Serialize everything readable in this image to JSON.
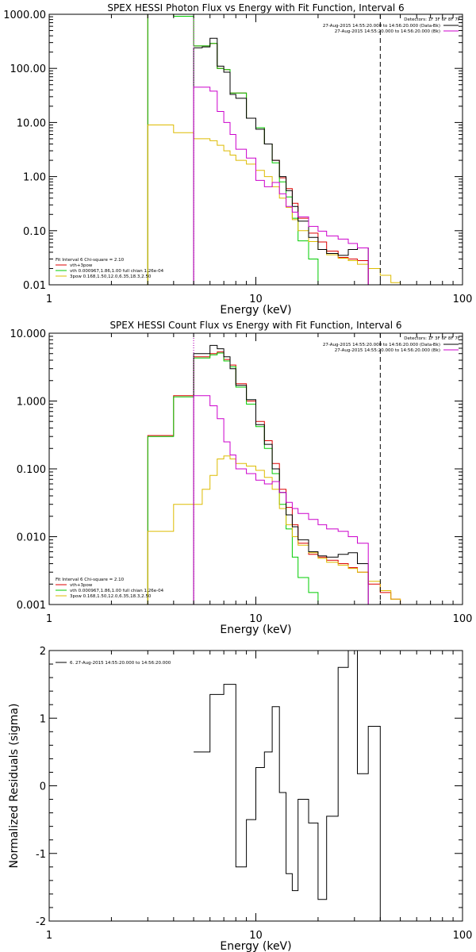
{
  "chart_data": [
    {
      "type": "line",
      "title": "SPEX HESSI Photon Flux vs Energy with Fit Function, Interval 6",
      "xlabel": "Energy (keV)",
      "ylabel": "",
      "xscale": "log",
      "yscale": "log",
      "xlim": [
        1,
        100
      ],
      "ylim": [
        0.01,
        1000
      ],
      "x_ticks": [
        1,
        10,
        100
      ],
      "x_tick_labels": [
        "1",
        "10",
        "100"
      ],
      "y_ticks": [
        0.01,
        0.1,
        1,
        10,
        100,
        1000
      ],
      "y_tick_labels": [
        "0.01",
        "0.10",
        "1.00",
        "10.00",
        "100.00",
        "1000.00"
      ],
      "vlines": [
        {
          "x": 5,
          "style": "dotted",
          "color": "#000000"
        },
        {
          "x": 5,
          "style": "dotted",
          "color": "#cc00cc"
        },
        {
          "x": 40,
          "style": "dashed",
          "color": "#000000"
        }
      ],
      "legend_top": {
        "placement": "top-right",
        "header": "Detectors: 1F 3F 6F 8F 7F",
        "entries": [
          {
            "label": "27-Aug-2015 14:55:20.000 to 14:56:20.000 (Data-Bk)",
            "color": "#000000"
          },
          {
            "label": "27-Aug-2015 14:55:20.000 to 14:56:20.000 (Bk)",
            "color": "#cc00cc"
          }
        ]
      },
      "legend_bottom": {
        "placement": "bottom-left",
        "header": "Fit Interval 6   Chi-square = 2.10",
        "entries": [
          {
            "label": "vth+3pow",
            "color": "#dd0000"
          },
          {
            "label": "vth 0.000967,1.86,1.00  full chian 1.26e-04",
            "color": "#00cc00"
          },
          {
            "label": "3pow 0.168,1.50,12.0,6.35,18.3,2.50",
            "color": "#ddbb00"
          }
        ]
      },
      "edges": [
        3,
        4,
        5,
        5.5,
        6,
        6.5,
        7,
        7.5,
        8,
        9,
        10,
        11,
        12,
        13,
        14,
        15,
        16,
        18,
        20,
        22,
        25,
        28,
        31,
        35,
        40,
        45,
        50,
        60
      ],
      "series": [
        {
          "name": "vth+3pow",
          "color": "#dd0000",
          "values": [
            1000,
            920,
            260,
            260,
            290,
            100,
            95,
            35,
            35,
            12,
            8,
            4,
            2,
            0.95,
            0.6,
            0.32,
            0.17,
            0.09,
            0.062,
            0.042,
            0.032,
            0.03,
            0.028,
            null,
            null,
            null,
            null
          ]
        },
        {
          "name": "vth",
          "color": "#00cc00",
          "values": [
            1000,
            920,
            260,
            260,
            290,
            100,
            95,
            35,
            35,
            12,
            8,
            4,
            1.8,
            0.8,
            0.42,
            0.17,
            0.065,
            0.03,
            0.01,
            null,
            null,
            null,
            null,
            null,
            null,
            null,
            null
          ]
        },
        {
          "name": "3pow",
          "color": "#ddbb00",
          "values": [
            9,
            6.5,
            5,
            5,
            4.6,
            3.8,
            3.0,
            2.5,
            2.0,
            1.7,
            1.3,
            1.0,
            0.65,
            0.4,
            0.27,
            0.16,
            0.1,
            0.063,
            0.045,
            0.036,
            0.031,
            0.028,
            0.024,
            0.02,
            0.015,
            0.011,
            null
          ]
        },
        {
          "name": "Data-Bk",
          "color": "#000000",
          "values": [
            null,
            null,
            240,
            250,
            360,
            110,
            85,
            33,
            28,
            12,
            7.5,
            4,
            2,
            1,
            0.55,
            0.28,
            0.15,
            0.075,
            0.045,
            0.038,
            0.035,
            0.045,
            0.048,
            null,
            null,
            null,
            null
          ]
        },
        {
          "name": "Bk",
          "color": "#cc00cc",
          "values": [
            null,
            null,
            45,
            45,
            38,
            16,
            10,
            6,
            3.2,
            2.2,
            0.85,
            0.65,
            0.78,
            0.48,
            0.28,
            0.22,
            0.18,
            0.12,
            0.098,
            0.08,
            0.07,
            0.058,
            0.048,
            null,
            null,
            null,
            null
          ]
        }
      ]
    },
    {
      "type": "line",
      "title": "SPEX HESSI Count Flux vs Energy with Fit Function, Interval 6",
      "xlabel": "Energy (keV)",
      "ylabel": "",
      "xscale": "log",
      "yscale": "log",
      "xlim": [
        1,
        100
      ],
      "ylim": [
        0.001,
        10
      ],
      "x_ticks": [
        1,
        10,
        100
      ],
      "x_tick_labels": [
        "1",
        "10",
        "100"
      ],
      "y_ticks": [
        0.001,
        0.01,
        0.1,
        1,
        10
      ],
      "y_tick_labels": [
        "0.001",
        "0.010",
        "0.100",
        "1.000",
        "10.000"
      ],
      "vlines": [
        {
          "x": 5,
          "style": "dotted",
          "color": "#000000"
        },
        {
          "x": 5,
          "style": "dotted",
          "color": "#cc00cc"
        },
        {
          "x": 40,
          "style": "dashed",
          "color": "#000000"
        }
      ],
      "legend_top": {
        "placement": "top-right",
        "header": "Detectors: 1F 3F 6F 8F 7F",
        "entries": [
          {
            "label": "27-Aug-2015 14:55:20.000 to 14:56:20.000 (Data-Bk)",
            "color": "#000000"
          },
          {
            "label": "27-Aug-2015 14:55:20.000 to 14:56:20.000 (Bk)",
            "color": "#cc00cc"
          }
        ]
      },
      "legend_bottom": {
        "placement": "bottom-left",
        "header": "Fit Interval 6   Chi-square = 2.10",
        "entries": [
          {
            "label": "vth+3pow",
            "color": "#dd0000"
          },
          {
            "label": "vth 0.000967,1.86,1.00  full chian 1.26e-04",
            "color": "#00cc00"
          },
          {
            "label": "3pow 0.168,1.50,12.0,6.35,18.3,2.50",
            "color": "#ddbb00"
          }
        ]
      },
      "edges": [
        3,
        4,
        5,
        5.5,
        6,
        6.5,
        7,
        7.5,
        8,
        9,
        10,
        11,
        12,
        13,
        14,
        15,
        16,
        18,
        20,
        22,
        25,
        28,
        31,
        35,
        40,
        45,
        50,
        60
      ],
      "series": [
        {
          "name": "vth+3pow",
          "color": "#dd0000",
          "values": [
            0.31,
            1.2,
            4.5,
            4.5,
            5.0,
            5.3,
            4.1,
            3.4,
            1.8,
            1.0,
            0.5,
            0.26,
            0.12,
            0.05,
            0.027,
            0.015,
            0.008,
            0.0055,
            0.005,
            0.0045,
            0.004,
            0.0035,
            0.003,
            0.002,
            0.0015,
            0.0012,
            0.001
          ]
        },
        {
          "name": "vth",
          "color": "#00cc00",
          "values": [
            0.3,
            1.15,
            4.3,
            4.3,
            4.8,
            5.1,
            3.9,
            3.2,
            1.6,
            0.9,
            0.42,
            0.2,
            0.085,
            0.03,
            0.013,
            0.005,
            0.0025,
            0.0015,
            0.001,
            null,
            null,
            null,
            null,
            null,
            null,
            null,
            null
          ]
        },
        {
          "name": "3pow",
          "color": "#ddbb00",
          "values": [
            0.012,
            0.03,
            0.03,
            0.05,
            0.08,
            0.14,
            0.155,
            0.14,
            0.12,
            0.11,
            0.095,
            0.075,
            0.05,
            0.026,
            0.015,
            0.01,
            0.0075,
            0.0058,
            0.0048,
            0.0042,
            0.0038,
            0.0034,
            0.003,
            0.0022,
            0.0016,
            0.0012,
            0.001
          ]
        },
        {
          "name": "Data-Bk",
          "color": "#000000",
          "values": [
            null,
            null,
            5.0,
            5.0,
            6.6,
            5.9,
            4.5,
            3.0,
            1.7,
            1.05,
            0.45,
            0.23,
            0.1,
            0.045,
            0.021,
            0.014,
            0.009,
            0.006,
            0.0052,
            0.005,
            0.0055,
            0.0058,
            0.004,
            null,
            null,
            null,
            null
          ]
        },
        {
          "name": "Bk",
          "color": "#cc00cc",
          "values": [
            null,
            null,
            1.2,
            1.2,
            0.85,
            0.55,
            0.25,
            0.16,
            0.1,
            0.085,
            0.068,
            0.06,
            0.065,
            0.045,
            0.032,
            0.026,
            0.022,
            0.018,
            0.015,
            0.013,
            0.012,
            0.01,
            0.008,
            null,
            null,
            null,
            null
          ]
        }
      ]
    },
    {
      "type": "line",
      "title": "",
      "xlabel": "Energy (keV)",
      "ylabel": "Normalized Residuals (sigma)",
      "xscale": "log",
      "yscale": "linear",
      "xlim": [
        1,
        100
      ],
      "ylim": [
        -2,
        2
      ],
      "x_ticks": [
        1,
        10,
        100
      ],
      "x_tick_labels": [
        "1",
        "10",
        "100"
      ],
      "y_ticks": [
        -2,
        -1,
        0,
        1,
        2
      ],
      "y_tick_labels": [
        "-2",
        "-1",
        "0",
        "1",
        "2"
      ],
      "legend": {
        "placement": "top-left",
        "entries": [
          {
            "label": "6. 27-Aug-2015 14:55:20.000 to 14:56:20.000",
            "color": "#000000"
          }
        ]
      },
      "edges": [
        5,
        6,
        7,
        8,
        9,
        10,
        11,
        12,
        13,
        14,
        15,
        16,
        18,
        20,
        22,
        25,
        28,
        31,
        35,
        40
      ],
      "series": [
        {
          "name": "6. 27-Aug-2015 14:55:20.000 to 14:56:20.000",
          "color": "#000000",
          "values": [
            0.5,
            1.35,
            1.5,
            -1.2,
            -0.5,
            0.27,
            0.5,
            1.17,
            -0.1,
            -1.3,
            -1.55,
            -0.2,
            -0.55,
            -1.68,
            -0.45,
            1.75,
            2.0,
            0.18,
            0.88
          ]
        }
      ]
    }
  ]
}
